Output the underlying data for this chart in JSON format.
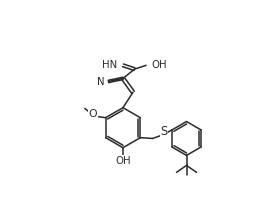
{
  "bg": "#ffffff",
  "lc": "#2a2a2a",
  "lw": 1.1,
  "fs": 6.8,
  "figsize": [
    2.7,
    2.17
  ],
  "dpi": 100,
  "xlim": [
    0,
    27
  ],
  "ylim": [
    0,
    21.7
  ]
}
